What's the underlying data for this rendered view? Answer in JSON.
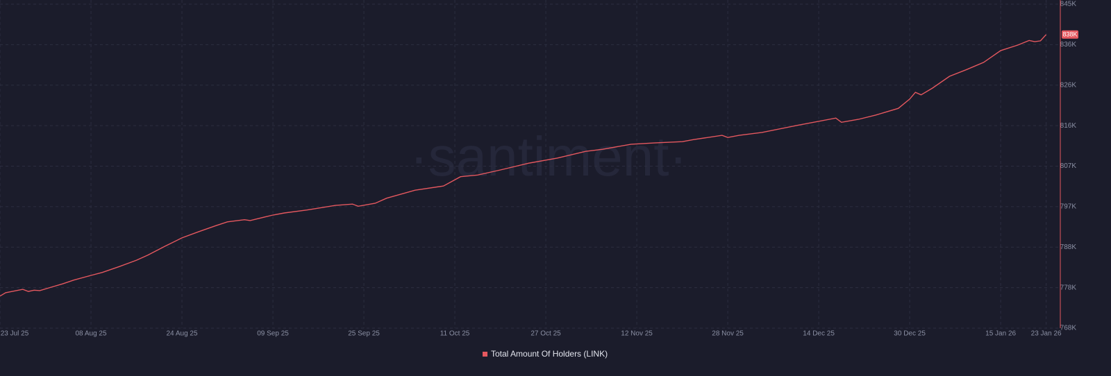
{
  "chart_data": {
    "type": "line",
    "watermark": "·santiment·",
    "x": [
      "2025-07-23",
      "2025-07-24",
      "2025-07-27",
      "2025-07-28",
      "2025-07-29",
      "2025-07-30",
      "2025-08-01",
      "2025-08-03",
      "2025-08-05",
      "2025-08-08",
      "2025-08-10",
      "2025-08-13",
      "2025-08-16",
      "2025-08-18",
      "2025-08-21",
      "2025-08-24",
      "2025-08-27",
      "2025-08-30",
      "2025-09-01",
      "2025-09-04",
      "2025-09-05",
      "2025-09-09",
      "2025-09-11",
      "2025-09-15",
      "2025-09-20",
      "2025-09-23",
      "2025-09-24",
      "2025-09-27",
      "2025-09-29",
      "2025-10-04",
      "2025-10-09",
      "2025-10-12",
      "2025-10-15",
      "2025-10-19",
      "2025-10-24",
      "2025-10-29",
      "2025-11-03",
      "2025-11-06",
      "2025-11-11",
      "2025-11-15",
      "2025-11-20",
      "2025-11-22",
      "2025-11-27",
      "2025-11-28",
      "2025-11-30",
      "2025-12-04",
      "2025-12-10",
      "2025-12-17",
      "2025-12-18",
      "2025-12-21",
      "2025-12-24",
      "2025-12-28",
      "2025-12-30",
      "2025-12-31",
      "2026-01-01",
      "2026-01-03",
      "2026-01-06",
      "2026-01-09",
      "2026-01-12",
      "2026-01-15",
      "2026-01-18",
      "2026-01-20",
      "2026-01-21",
      "2026-01-22",
      "2026-01-23"
    ],
    "series": [
      {
        "name": "Total Amount Of Holders (LINK)",
        "color": "#e5585f",
        "values": [
          776000,
          776800,
          777600,
          777100,
          777400,
          777300,
          778100,
          778900,
          779800,
          780900,
          781600,
          783000,
          784500,
          785700,
          787800,
          789800,
          791300,
          792700,
          793600,
          794100,
          793900,
          795200,
          795700,
          796400,
          797500,
          797800,
          797300,
          798000,
          799200,
          801100,
          802100,
          804300,
          804700,
          805900,
          807500,
          808700,
          810300,
          810800,
          812000,
          812300,
          812600,
          813100,
          814100,
          813600,
          814100,
          814800,
          816400,
          818200,
          817200,
          817900,
          818900,
          820500,
          822700,
          824300,
          823700,
          825300,
          828100,
          829700,
          831400,
          834200,
          835500,
          836600,
          836300,
          836500,
          838000
        ],
        "value_labels": [
          null,
          null,
          null,
          null,
          null,
          null,
          null,
          null,
          null,
          null,
          null,
          null,
          null,
          null,
          null,
          null,
          null,
          null,
          null,
          null,
          null,
          null,
          null,
          null,
          null,
          null,
          null,
          null,
          null,
          null,
          null,
          null,
          null,
          null,
          null,
          null,
          null,
          null,
          null,
          null,
          null,
          null,
          null,
          null,
          null,
          null,
          null,
          null,
          null,
          null,
          null,
          null,
          null,
          null,
          null,
          null,
          null,
          null,
          null,
          null,
          null,
          null,
          null,
          null,
          "838K"
        ]
      }
    ],
    "xlim": [
      "2025-07-23",
      "2026-01-25"
    ],
    "xticks": [
      {
        "value": "2025-07-23",
        "label": "23 Jul 25"
      },
      {
        "value": "2025-08-08",
        "label": "08 Aug 25"
      },
      {
        "value": "2025-08-24",
        "label": "24 Aug 25"
      },
      {
        "value": "2025-09-09",
        "label": "09 Sep 25"
      },
      {
        "value": "2025-09-25",
        "label": "25 Sep 25"
      },
      {
        "value": "2025-10-11",
        "label": "11 Oct 25"
      },
      {
        "value": "2025-10-27",
        "label": "27 Oct 25"
      },
      {
        "value": "2025-11-12",
        "label": "12 Nov 25"
      },
      {
        "value": "2025-11-28",
        "label": "28 Nov 25"
      },
      {
        "value": "2025-12-14",
        "label": "14 Dec 25"
      },
      {
        "value": "2025-12-30",
        "label": "30 Dec 25"
      },
      {
        "value": "2026-01-15",
        "label": "15 Jan 26"
      },
      {
        "value": "2026-01-23",
        "label": "23 Jan 26"
      }
    ],
    "ylim": [
      768400,
      845200
    ],
    "yticks": [
      {
        "value": 768400,
        "label": "768K"
      },
      {
        "value": 778000,
        "label": "778K"
      },
      {
        "value": 787600,
        "label": "788K"
      },
      {
        "value": 797200,
        "label": "797K"
      },
      {
        "value": 806800,
        "label": "807K"
      },
      {
        "value": 816400,
        "label": "816K"
      },
      {
        "value": 826000,
        "label": "826K"
      },
      {
        "value": 835600,
        "label": "836K"
      },
      {
        "value": 845200,
        "label": "845K"
      }
    ],
    "grid": true
  }
}
